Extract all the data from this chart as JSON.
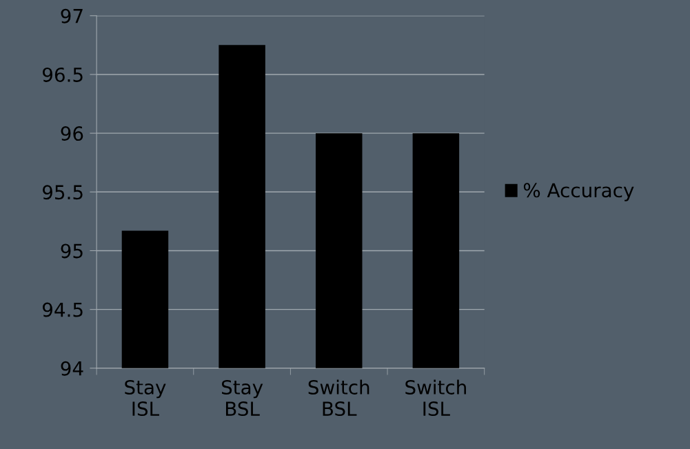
{
  "chart_data": {
    "type": "bar",
    "categories": [
      "Stay\nISL",
      "Stay\nBSL",
      "Switch\nBSL",
      "Switch\nISL"
    ],
    "series": [
      {
        "name": "% Accuracy",
        "color": "#000000",
        "values": [
          95.17,
          96.75,
          96.0,
          96.0
        ]
      }
    ],
    "ylim": [
      94,
      97
    ],
    "yticks": [
      94,
      94.5,
      95,
      95.5,
      96,
      96.5,
      97
    ],
    "grid": "y",
    "legend": "right"
  }
}
